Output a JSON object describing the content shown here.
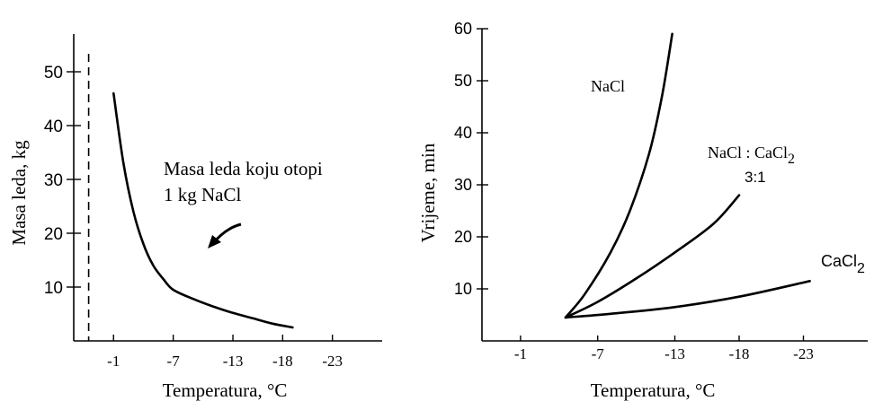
{
  "chart_data": [
    {
      "type": "line",
      "xlabel": "Temperatura, °C",
      "ylabel": "Masa leda, kg",
      "x_ticks": [
        -1,
        -7,
        -13,
        -18,
        -23
      ],
      "y_ticks": [
        10,
        20,
        30,
        40,
        50
      ],
      "xlim": [
        3,
        -28
      ],
      "ylim": [
        0,
        57
      ],
      "reference_line_x": 1.5,
      "annotation": {
        "lines": [
          "Masa leda koju otopi",
          "1 kg NaCl"
        ]
      },
      "series": [
        {
          "x": [
            -1,
            -2,
            -3,
            -4,
            -5,
            -6,
            -7,
            -9,
            -11,
            -13,
            -15,
            -17,
            -19
          ],
          "y": [
            46,
            33,
            24,
            18,
            14,
            11.5,
            9.5,
            7.8,
            6.4,
            5.2,
            4.2,
            3.2,
            2.5
          ]
        }
      ]
    },
    {
      "type": "line",
      "xlabel": "Temperatura, °C",
      "ylabel": "Vrijeme, min",
      "x_ticks": [
        -1,
        -7,
        -13,
        -18,
        -23
      ],
      "y_ticks": [
        10,
        20,
        30,
        40,
        50,
        60
      ],
      "xlim": [
        2,
        -28
      ],
      "ylim": [
        0,
        60
      ],
      "series": [
        {
          "name": "NaCl",
          "x": [
            -4.5,
            -6,
            -8,
            -9.5,
            -11,
            -12,
            -12.8
          ],
          "y": [
            4.5,
            9,
            17,
            25,
            36,
            47,
            59
          ]
        },
        {
          "name": "NaCl : CaCl2",
          "name_sub": "3:1",
          "x": [
            -4.5,
            -7,
            -10,
            -13,
            -16,
            -18
          ],
          "y": [
            4.5,
            7.5,
            12,
            17,
            22.5,
            28
          ]
        },
        {
          "name": "CaCl2",
          "x": [
            -4.5,
            -8,
            -13,
            -18,
            -23.5
          ],
          "y": [
            4.5,
            5.2,
            6.5,
            8.5,
            11.5
          ]
        }
      ]
    }
  ]
}
